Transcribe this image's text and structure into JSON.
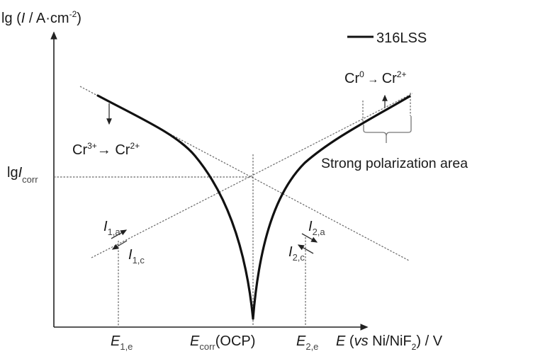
{
  "y_axis": {
    "label_prefix": "lg (",
    "label_var": "I",
    "label_unit": " / A·cm",
    "label_exp": "-2",
    "label_suffix": ")"
  },
  "x_axis": {
    "label_var": "E",
    "label_open": " (",
    "label_vs": "vs",
    "label_ref": " Ni/NiF",
    "label_sub": "2",
    "label_suffix": ") / V"
  },
  "y_tick": {
    "prefix": "lg",
    "var": "I",
    "sub": "corr"
  },
  "x_ticks": [
    {
      "var": "E",
      "sub": "1,e"
    },
    {
      "var": "E",
      "sub": "corr",
      "suffix": "(OCP)"
    },
    {
      "var": "E",
      "sub": "2,e"
    }
  ],
  "legend": {
    "series": "316LSS",
    "color": "#111111"
  },
  "annotations": {
    "cathodic_reaction": {
      "a": "Cr",
      "a_sup": "3+",
      "arrow": "→ ",
      "b": "Cr",
      "b_sup": "2+"
    },
    "anodic_reaction": {
      "a": "Cr",
      "a_sup": "0",
      "arrow": " → ",
      "b": "Cr",
      "b_sup": "2+"
    },
    "region": "Strong polarization area",
    "currents": [
      {
        "var": "I",
        "sub": "1,a"
      },
      {
        "var": "I",
        "sub": "1,c"
      },
      {
        "var": "I",
        "sub": "2,a"
      },
      {
        "var": "I",
        "sub": "2,c"
      }
    ]
  }
}
